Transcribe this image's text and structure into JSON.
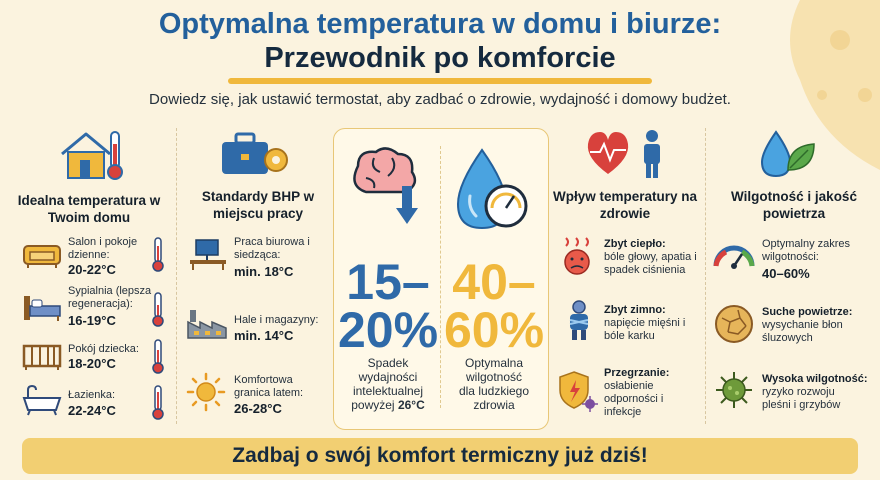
{
  "header": {
    "title_line1": "Optymalna temperatura w domu i biurze:",
    "title_line2": "Przewodnik po komforcie",
    "subtitle": "Dowiedz się, jak ustawić termostat, aby zadbać o zdrowie, wydajność i domowy budżet."
  },
  "home": {
    "title": "Idealna temperatura w Twoim domu",
    "rooms": [
      {
        "label": "Salon i pokoje dzienne:",
        "value": "20-22°C",
        "icon": "sofa-icon"
      },
      {
        "label": "Sypialnia (lepsza regeneracja):",
        "value": "16-19°C",
        "icon": "bed-icon"
      },
      {
        "label": "Pokój dziecka:",
        "value": "18-20°C",
        "icon": "crib-icon"
      },
      {
        "label": "Łazienka:",
        "value": "22-24°C",
        "icon": "bathtub-icon"
      }
    ]
  },
  "work": {
    "title": "Standardy BHP w miejscu pracy",
    "items": [
      {
        "label": "Praca biurowa i siedząca:",
        "value": "min. 18°C",
        "icon": "desk-icon"
      },
      {
        "label": "Hale i magazyny:",
        "value": "min. 14°C",
        "icon": "factory-icon"
      },
      {
        "label": "Komfortowa granica latem:",
        "value": "26-28°C",
        "icon": "sun-icon"
      }
    ]
  },
  "center": {
    "left_number_1": "15–",
    "left_number_2": "20%",
    "left_caption_1": "Spadek",
    "left_caption_2": "wydajności",
    "left_caption_3": "intelektualnej",
    "left_caption_4": "powyżej",
    "left_caption_bold": "26°C",
    "right_number_1": "40–",
    "right_number_2": "60%",
    "right_caption": [
      "Optymalna",
      "wilgotność",
      "dla ludzkiego",
      "zdrowia"
    ]
  },
  "health": {
    "title": "Wpływ temperatury na zdrowie",
    "items": [
      {
        "label": "Zbyt ciepło:",
        "desc": "bóle głowy, apatia i spadek ciśnienia",
        "icon": "hot-face-icon"
      },
      {
        "label": "Zbyt zimno:",
        "desc": "napięcie mięśni i bóle karku",
        "icon": "cold-person-icon"
      },
      {
        "label": "Przegrzanie:",
        "desc": "osłabienie odporności i infekcje",
        "icon": "shield-virus-icon"
      }
    ]
  },
  "humidity": {
    "title": "Wilgotność i jakość powietrza",
    "items": [
      {
        "label": "",
        "desc": "Optymalny zakres wilgotności:",
        "value": "40–60%",
        "icon": "hygrometer-icon"
      },
      {
        "label": "Suche powietrze:",
        "desc": "wysychanie błon śluzowych",
        "value": "",
        "icon": "dry-surface-icon"
      },
      {
        "label": "Wysoka wilgotność:",
        "desc": "ryzyko rozwoju pleśni i grzybów",
        "value": "",
        "icon": "mold-icon"
      }
    ]
  },
  "footer": {
    "banner": "Zadbaj o swój komfort termiczny już dziś!"
  },
  "colors": {
    "blue": "#2f6aa8",
    "gold": "#f0b83c",
    "red": "#d8413c",
    "banner": "#f2cf72"
  }
}
